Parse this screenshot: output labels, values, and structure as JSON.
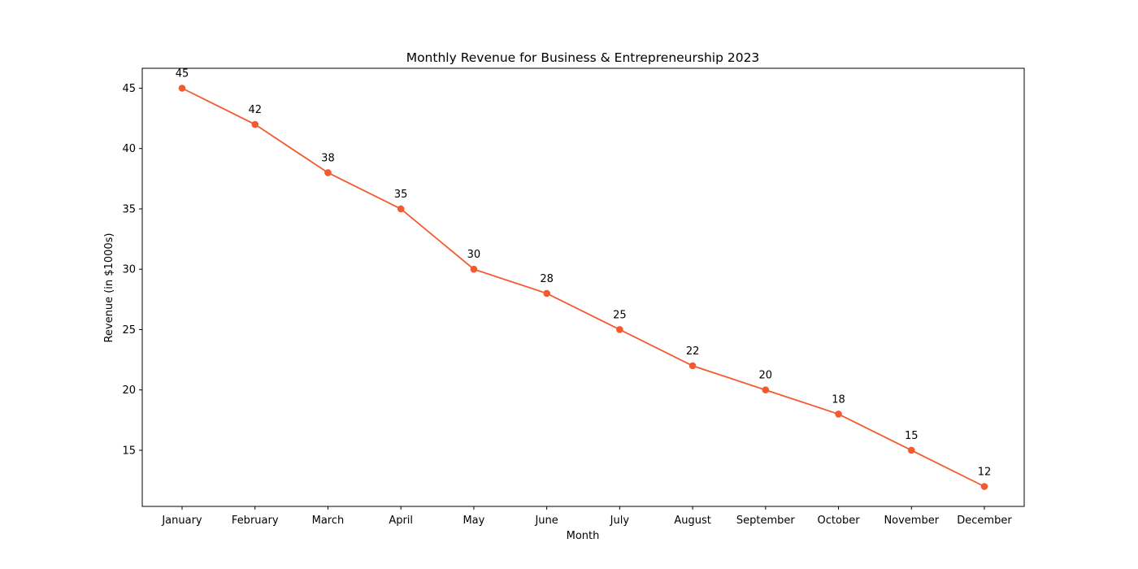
{
  "chart_data": {
    "type": "line",
    "title": "Monthly Revenue for Business & Entrepreneurship 2023",
    "xlabel": "Month",
    "ylabel": "Revenue (in $1000s)",
    "categories": [
      "January",
      "February",
      "March",
      "April",
      "May",
      "June",
      "July",
      "August",
      "September",
      "October",
      "November",
      "December"
    ],
    "series": [
      {
        "values": [
          45,
          42,
          38,
          35,
          30,
          28,
          25,
          22,
          20,
          18,
          15,
          12
        ]
      }
    ],
    "data_labels": [
      "45",
      "42",
      "38",
      "35",
      "30",
      "28",
      "25",
      "22",
      "20",
      "18",
      "15",
      "12"
    ],
    "ylim": [
      10.35,
      46.65
    ],
    "yticks": [
      15,
      20,
      25,
      30,
      35,
      40,
      45
    ],
    "ytick_labels": [
      "15",
      "20",
      "25",
      "30",
      "35",
      "40",
      "45"
    ],
    "grid": false,
    "line_color": "#f4592f",
    "marker": "circle"
  }
}
